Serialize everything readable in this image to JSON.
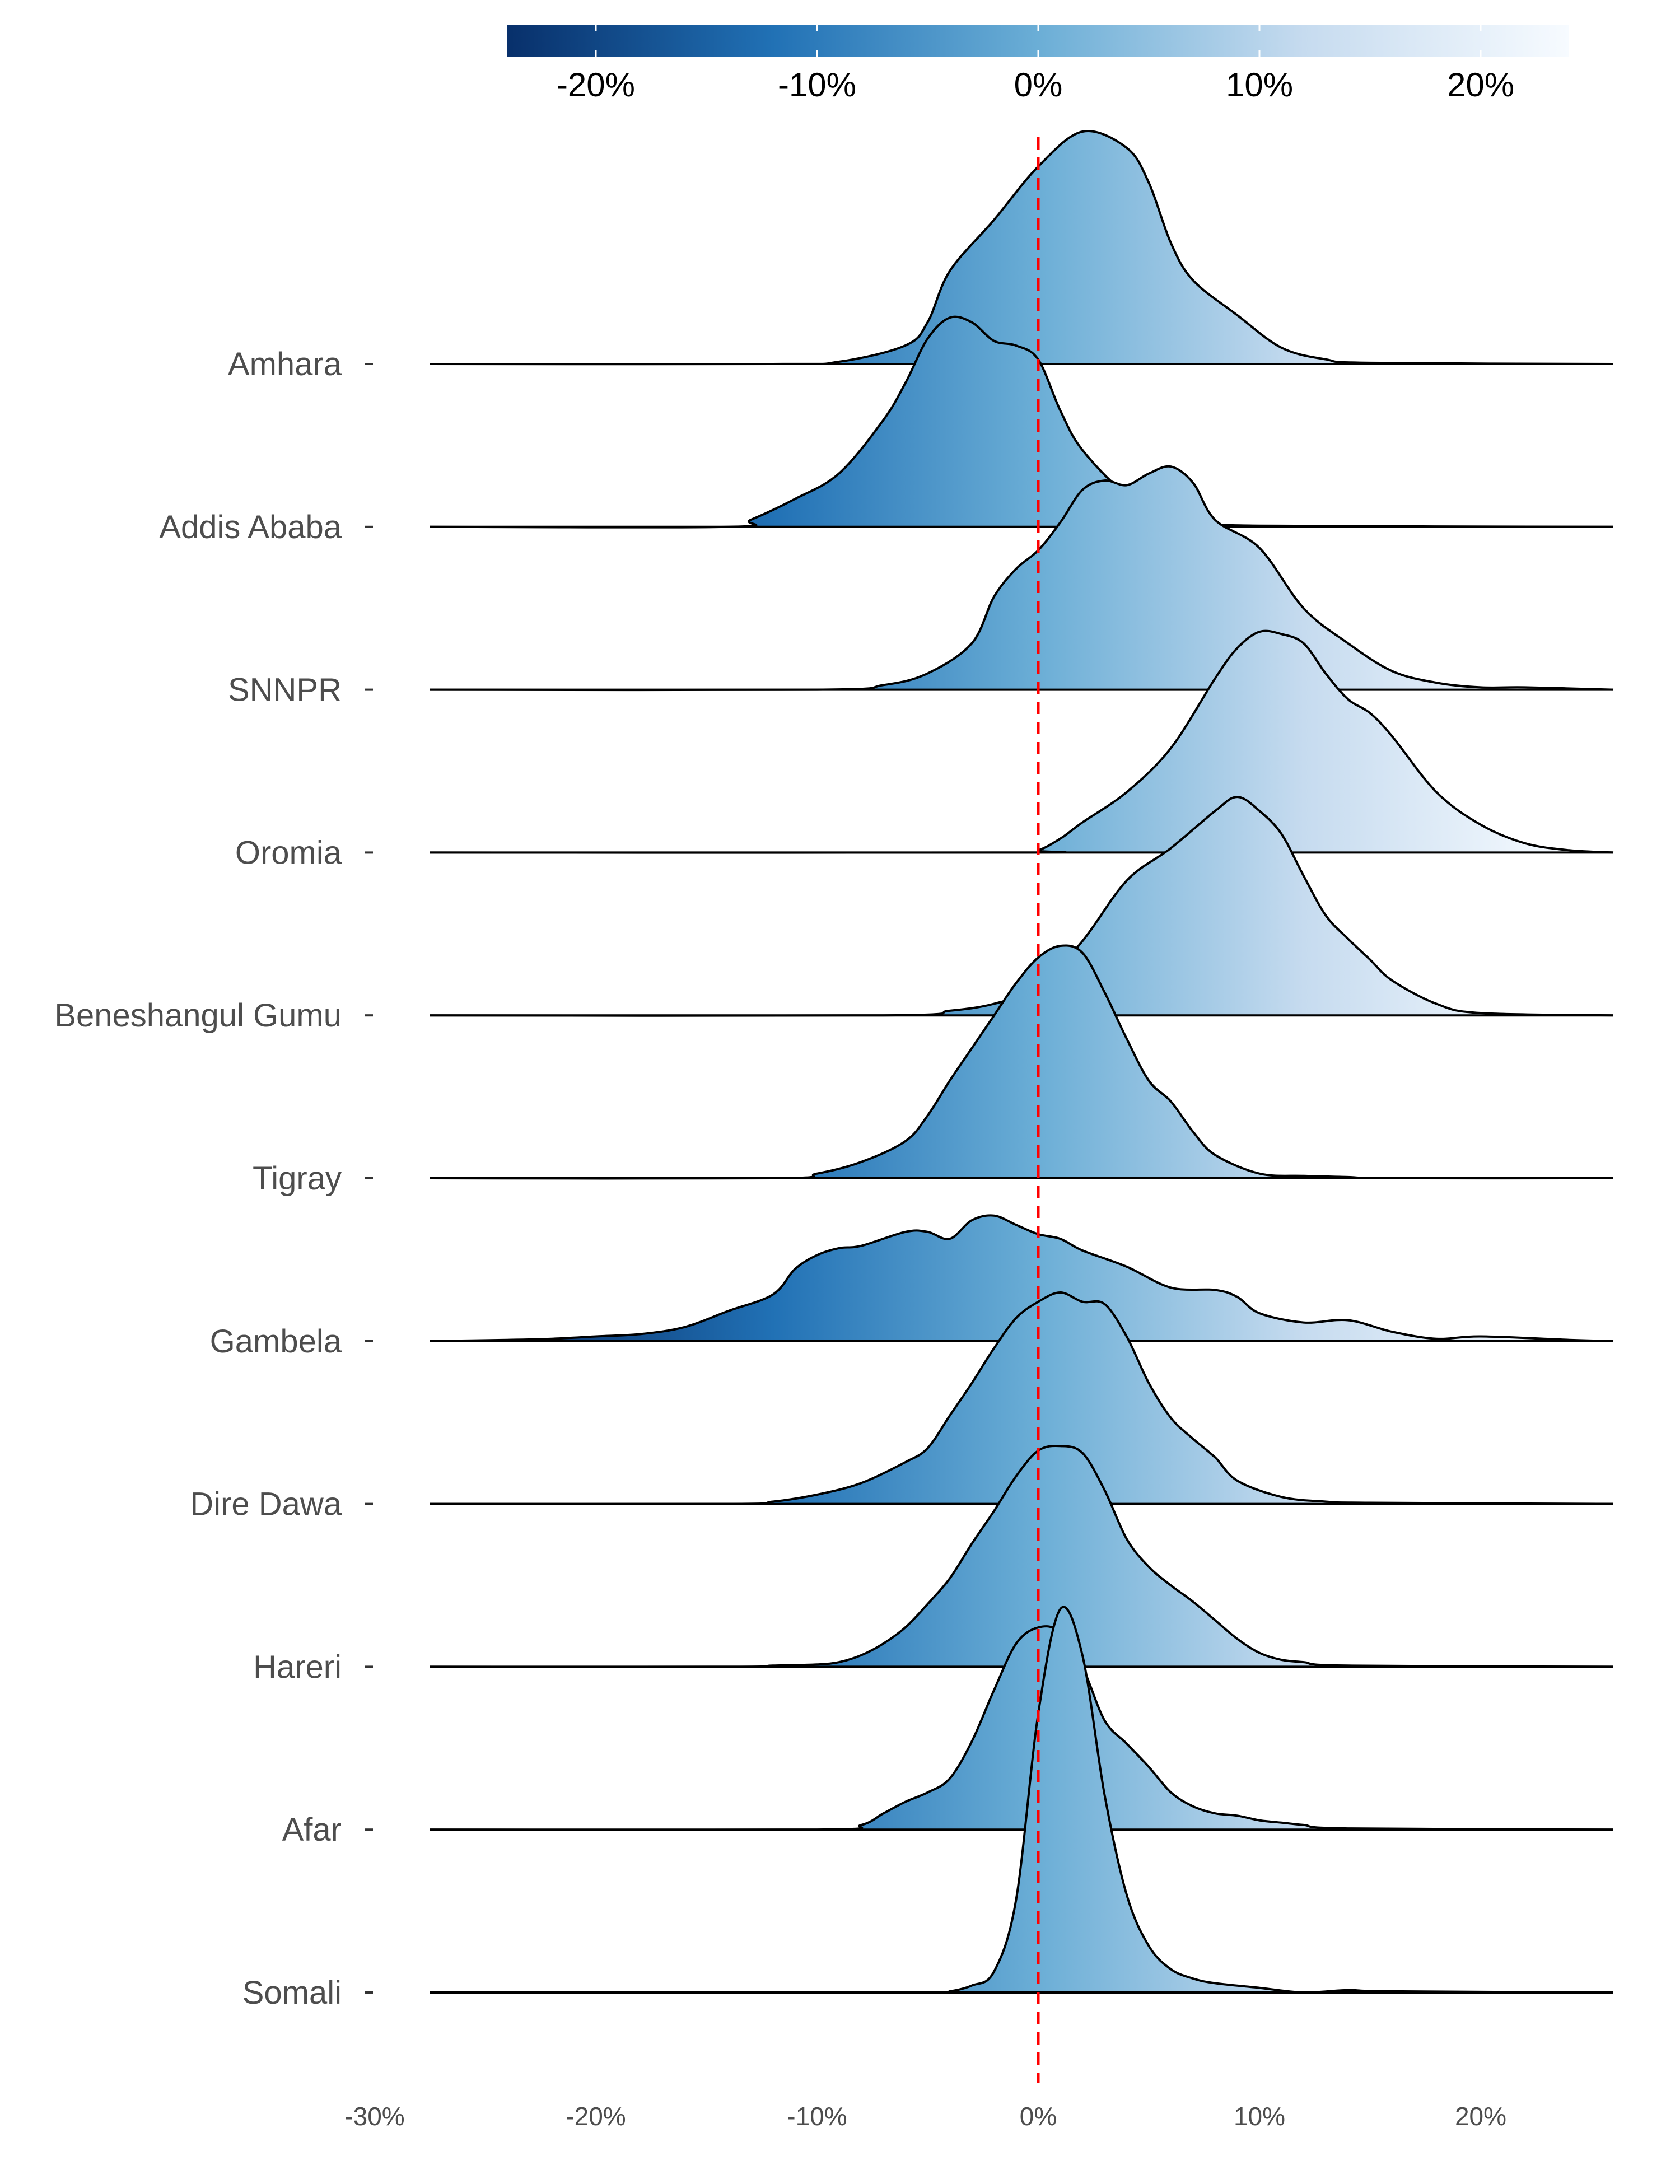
{
  "chart_data": {
    "type": "ridgeline",
    "title": "",
    "xlabel": "",
    "ylabel": "",
    "xlim": [
      -30,
      26
    ],
    "x_ticks": [
      "-30%",
      "-20%",
      "-10%",
      "0%",
      "10%",
      "20%"
    ],
    "x_tick_values": [
      -30,
      -20,
      -10,
      0,
      10,
      20
    ],
    "reference_line": {
      "x": 0,
      "style": "dashed",
      "color": "#ff0000"
    },
    "legend": {
      "placement": "top",
      "range": [
        -24,
        24
      ],
      "ticks": [
        "-20%",
        "-10%",
        "0%",
        "10%",
        "20%"
      ],
      "tick_values": [
        -20,
        -10,
        0,
        10,
        20
      ]
    },
    "colors": {
      "low": "#08306b",
      "mid_low": "#2171b5",
      "mid": "#6baed6",
      "mid_high": "#c6dbef",
      "high": "#f7fbff",
      "outline": "#000000"
    },
    "categories": [
      "Amhara",
      "Addis Ababa",
      "SNNPR",
      "Oromia",
      "Beneshangul Gumu",
      "Tigray",
      "Gambela",
      "Dire Dawa",
      "Hareri",
      "Afar",
      "Somali"
    ],
    "series": [
      {
        "name": "Amhara",
        "x": [
          -27.5,
          -12,
          -9,
          -6,
          -5,
          -4,
          -2,
          0,
          2,
          4,
          5,
          6,
          7,
          9,
          11,
          13,
          15,
          26
        ],
        "density": [
          0,
          0,
          0.01,
          0.08,
          0.18,
          0.4,
          0.62,
          0.85,
          1.0,
          0.93,
          0.78,
          0.52,
          0.36,
          0.21,
          0.07,
          0.02,
          0.005,
          0
        ]
      },
      {
        "name": "Addis Ababa",
        "x": [
          -27.5,
          -14,
          -13,
          -11,
          -9,
          -7,
          -6,
          -5,
          -4,
          -3,
          -2,
          -1,
          0,
          1,
          2,
          4,
          6,
          8,
          10,
          26
        ],
        "density": [
          0,
          0,
          0.03,
          0.12,
          0.23,
          0.46,
          0.62,
          0.81,
          0.9,
          0.88,
          0.8,
          0.78,
          0.72,
          0.5,
          0.33,
          0.14,
          0.06,
          0.02,
          0.005,
          0
        ]
      },
      {
        "name": "SNNPR",
        "x": [
          -27.5,
          -10,
          -7,
          -5,
          -3,
          -2,
          -1,
          0,
          1,
          2,
          3,
          4,
          5,
          6,
          7,
          8,
          10,
          12,
          14,
          16,
          18,
          20,
          22,
          26
        ],
        "density": [
          0,
          0,
          0.02,
          0.07,
          0.2,
          0.4,
          0.52,
          0.6,
          0.72,
          0.86,
          0.9,
          0.88,
          0.93,
          0.96,
          0.89,
          0.73,
          0.61,
          0.35,
          0.2,
          0.08,
          0.03,
          0.01,
          0.01,
          0
        ]
      },
      {
        "name": "Oromia",
        "x": [
          -27.5,
          -1,
          0,
          1,
          2,
          4,
          6,
          8,
          9,
          10,
          11,
          12,
          13,
          14,
          15,
          16,
          18,
          20,
          22,
          24,
          26
        ],
        "density": [
          0,
          0,
          0.01,
          0.06,
          0.13,
          0.26,
          0.45,
          0.75,
          0.88,
          0.95,
          0.94,
          0.9,
          0.77,
          0.66,
          0.6,
          0.5,
          0.26,
          0.12,
          0.04,
          0.01,
          0
        ]
      },
      {
        "name": "Beneshangul Gumu",
        "x": [
          -27.5,
          -7,
          -4,
          -2,
          0,
          2,
          4,
          6,
          8,
          9,
          10,
          11,
          12,
          13,
          14,
          15,
          16,
          18,
          20,
          26
        ],
        "density": [
          0,
          0,
          0.02,
          0.05,
          0.12,
          0.32,
          0.58,
          0.72,
          0.88,
          0.94,
          0.88,
          0.78,
          0.6,
          0.43,
          0.33,
          0.24,
          0.15,
          0.05,
          0.01,
          0
        ]
      },
      {
        "name": "Tigray",
        "x": [
          -27.5,
          -12,
          -10,
          -8,
          -6,
          -5,
          -4,
          -3,
          -2,
          -1,
          0,
          1,
          2,
          3,
          4,
          5,
          6,
          7,
          8,
          10,
          12,
          14,
          16,
          26
        ],
        "density": [
          0,
          0,
          0.02,
          0.07,
          0.16,
          0.27,
          0.42,
          0.56,
          0.7,
          0.84,
          0.95,
          1.0,
          0.97,
          0.8,
          0.6,
          0.42,
          0.33,
          0.2,
          0.1,
          0.02,
          0.01,
          0.005,
          0,
          0
        ]
      },
      {
        "name": "Gambela",
        "x": [
          -27.5,
          -24,
          -22,
          -20,
          -18,
          -16,
          -14,
          -12,
          -11,
          -10,
          -9,
          -8,
          -6,
          -5,
          -4,
          -3,
          -2,
          -1,
          0,
          1,
          2,
          4,
          6,
          8,
          9,
          10,
          12,
          14,
          16,
          18,
          20,
          24,
          26
        ],
        "density": [
          0,
          0.005,
          0.01,
          0.02,
          0.03,
          0.06,
          0.13,
          0.2,
          0.31,
          0.37,
          0.4,
          0.41,
          0.47,
          0.47,
          0.44,
          0.52,
          0.54,
          0.5,
          0.46,
          0.44,
          0.39,
          0.32,
          0.23,
          0.22,
          0.19,
          0.12,
          0.08,
          0.09,
          0.04,
          0.01,
          0.02,
          0.005,
          0
        ]
      },
      {
        "name": "Dire Dawa",
        "x": [
          -27.5,
          -14,
          -12,
          -10,
          -8,
          -6,
          -5,
          -4,
          -3,
          -2,
          -1,
          0,
          1,
          2,
          3,
          4,
          5,
          6,
          7,
          8,
          9,
          11,
          13,
          15,
          26
        ],
        "density": [
          0,
          0,
          0.01,
          0.04,
          0.09,
          0.18,
          0.24,
          0.38,
          0.52,
          0.67,
          0.8,
          0.87,
          0.91,
          0.87,
          0.86,
          0.72,
          0.52,
          0.37,
          0.28,
          0.2,
          0.1,
          0.03,
          0.01,
          0.005,
          0
        ]
      },
      {
        "name": "Hareri",
        "x": [
          -27.5,
          -14,
          -12,
          -10,
          -9,
          -8,
          -7,
          -6,
          -5,
          -4,
          -3,
          -2,
          -1,
          0,
          1,
          2,
          3,
          4,
          5,
          6,
          7,
          8,
          9,
          10,
          11,
          12,
          14,
          26
        ],
        "density": [
          0,
          0,
          0.005,
          0.01,
          0.02,
          0.05,
          0.1,
          0.17,
          0.27,
          0.38,
          0.53,
          0.67,
          0.82,
          0.93,
          0.95,
          0.92,
          0.76,
          0.55,
          0.43,
          0.35,
          0.28,
          0.2,
          0.12,
          0.06,
          0.03,
          0.02,
          0.005,
          0
        ]
      },
      {
        "name": "Afar",
        "x": [
          -27.5,
          -10,
          -8,
          -7,
          -6,
          -5,
          -4,
          -3,
          -2,
          -1,
          0,
          1,
          2,
          3,
          4,
          5,
          6,
          7,
          8,
          9,
          10,
          11,
          12,
          14,
          26
        ],
        "density": [
          0,
          0,
          0.02,
          0.07,
          0.12,
          0.16,
          0.22,
          0.38,
          0.6,
          0.8,
          0.87,
          0.85,
          0.7,
          0.47,
          0.37,
          0.27,
          0.16,
          0.1,
          0.07,
          0.06,
          0.04,
          0.03,
          0.02,
          0.005,
          0
        ]
      },
      {
        "name": "Somali",
        "x": [
          -27.5,
          -5,
          -4,
          -3,
          -2,
          -1,
          0,
          1,
          2,
          3,
          4,
          5,
          6,
          7,
          8,
          10,
          12,
          14,
          16,
          26
        ],
        "density": [
          0,
          0,
          0.005,
          0.03,
          0.09,
          0.4,
          1.2,
          1.65,
          1.45,
          0.85,
          0.42,
          0.2,
          0.1,
          0.06,
          0.04,
          0.02,
          0.0,
          0.01,
          0.005,
          0
        ]
      }
    ]
  }
}
